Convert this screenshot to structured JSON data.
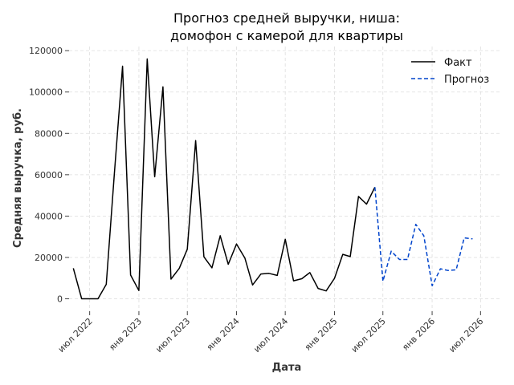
{
  "chart_data": {
    "type": "line",
    "title_lines": [
      "Прогноз средней выручки, ниша:",
      "домофон с камерой для квартиры"
    ],
    "xlabel": "Дата",
    "ylabel": "Средняя выручка, руб.",
    "ylim": [
      -6000,
      122000
    ],
    "xlim": [
      "2022-04-15",
      "2026-09-10"
    ],
    "grid": true,
    "legend_position": "top-right",
    "x_ticks": [
      {
        "date": "2022-07-01",
        "label": "июл 2022"
      },
      {
        "date": "2023-01-01",
        "label": "янв 2023"
      },
      {
        "date": "2023-07-01",
        "label": "июл 2023"
      },
      {
        "date": "2024-01-01",
        "label": "янв 2024"
      },
      {
        "date": "2024-07-01",
        "label": "июл 2024"
      },
      {
        "date": "2025-01-01",
        "label": "янв 2025"
      },
      {
        "date": "2025-07-01",
        "label": "июл 2025"
      },
      {
        "date": "2026-01-01",
        "label": "янв 2026"
      },
      {
        "date": "2026-07-01",
        "label": "июл 2026"
      }
    ],
    "y_ticks": [
      0,
      20000,
      40000,
      60000,
      80000,
      100000,
      120000
    ],
    "series": [
      {
        "name": "Факт",
        "color": "#000000",
        "dash": false,
        "points": [
          [
            "2022-05-01",
            14800
          ],
          [
            "2022-06-01",
            0
          ],
          [
            "2022-07-01",
            0
          ],
          [
            "2022-08-01",
            0
          ],
          [
            "2022-09-01",
            7000
          ],
          [
            "2022-10-01",
            60000
          ],
          [
            "2022-11-01",
            112500
          ],
          [
            "2022-12-01",
            11500
          ],
          [
            "2023-01-01",
            4000
          ],
          [
            "2023-02-01",
            116000
          ],
          [
            "2023-03-01",
            59000
          ],
          [
            "2023-04-01",
            102500
          ],
          [
            "2023-05-01",
            9500
          ],
          [
            "2023-06-01",
            14700
          ],
          [
            "2023-07-01",
            24000
          ],
          [
            "2023-08-01",
            76500
          ],
          [
            "2023-09-01",
            20300
          ],
          [
            "2023-10-01",
            15000
          ],
          [
            "2023-11-01",
            30500
          ],
          [
            "2023-12-01",
            16700
          ],
          [
            "2024-01-01",
            26500
          ],
          [
            "2024-02-01",
            19700
          ],
          [
            "2024-03-01",
            6700
          ],
          [
            "2024-04-01",
            12000
          ],
          [
            "2024-05-01",
            12300
          ],
          [
            "2024-06-01",
            11300
          ],
          [
            "2024-07-01",
            28800
          ],
          [
            "2024-08-01",
            8700
          ],
          [
            "2024-09-01",
            9700
          ],
          [
            "2024-10-01",
            12700
          ],
          [
            "2024-11-01",
            5000
          ],
          [
            "2024-12-01",
            3800
          ],
          [
            "2025-01-01",
            9900
          ],
          [
            "2025-02-01",
            21500
          ],
          [
            "2025-03-01",
            20400
          ],
          [
            "2025-04-01",
            49500
          ],
          [
            "2025-05-01",
            45800
          ],
          [
            "2025-06-01",
            54000
          ]
        ]
      },
      {
        "name": "Прогноз",
        "color": "#0044cc",
        "dash": true,
        "points": [
          [
            "2025-06-01",
            54000
          ],
          [
            "2025-07-01",
            8500
          ],
          [
            "2025-08-01",
            23000
          ],
          [
            "2025-09-01",
            19000
          ],
          [
            "2025-10-01",
            19000
          ],
          [
            "2025-11-01",
            36000
          ],
          [
            "2025-12-01",
            30500
          ],
          [
            "2026-01-01",
            6300
          ],
          [
            "2026-02-01",
            14500
          ],
          [
            "2026-03-01",
            13700
          ],
          [
            "2026-04-01",
            14000
          ],
          [
            "2026-05-01",
            29500
          ],
          [
            "2026-06-01",
            29000
          ]
        ]
      }
    ]
  }
}
